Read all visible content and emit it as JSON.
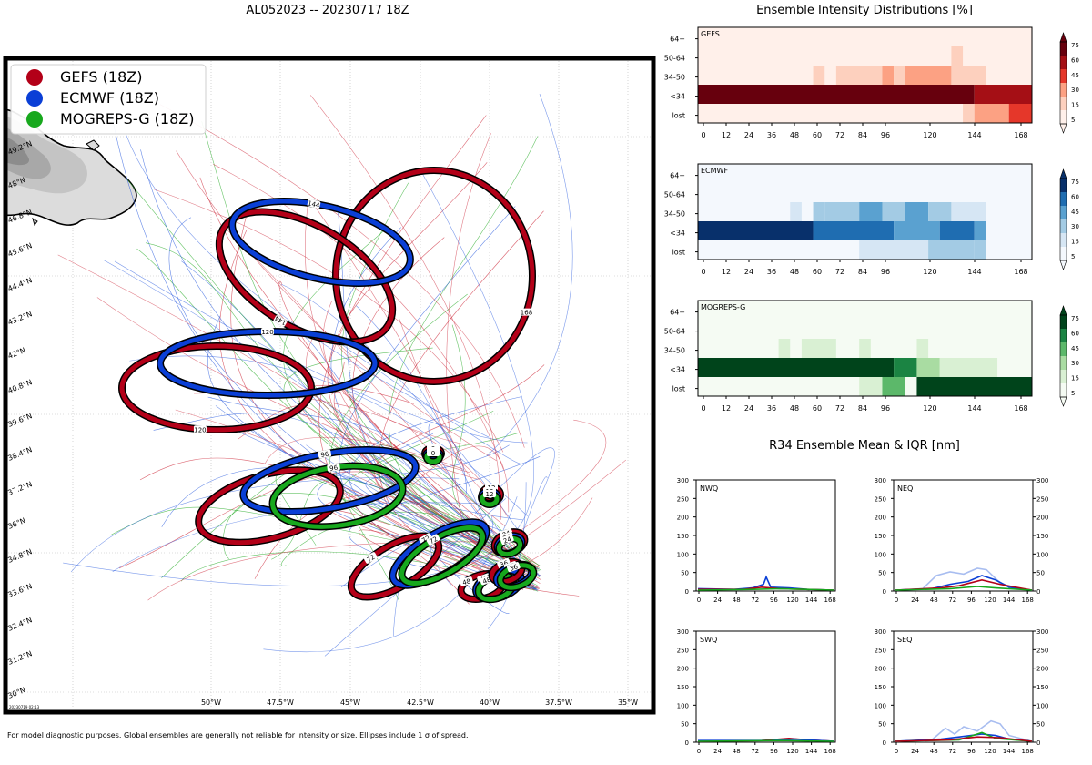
{
  "map": {
    "title": "AL052023 -- 20230717 18Z",
    "footer": "For model diagnostic purposes. Global ensembles are generally not reliable for intensity or size. Ellipses include 1 σ of spread.",
    "timestamp": "20230719 02:13",
    "lon_labels": [
      "50°W",
      "47.5°W",
      "45°W",
      "42.5°W",
      "40°W",
      "37.5°W",
      "35°W"
    ],
    "lat_labels": [
      "49.2°N",
      "48°N",
      "46.8°N",
      "45.6°N",
      "44.4°N",
      "43.2°N",
      "42°N",
      "40.8°N",
      "39.6°N",
      "38.4°N",
      "37.2°N",
      "36°N",
      "34.8°N",
      "33.6°N",
      "32.4°N",
      "31.2°N",
      "30°N"
    ],
    "legend": [
      {
        "label": "GEFS (18Z)",
        "color": "#b30018"
      },
      {
        "label": "ECMWF (18Z)",
        "color": "#0a3fd6"
      },
      {
        "label": "MOGREPS-G (18Z)",
        "color": "#17a81d"
      }
    ],
    "ellipse_hours": {
      "gefs": [
        "0",
        "12",
        "24",
        "36",
        "48",
        "72",
        "96",
        "96",
        "120",
        "120",
        "144",
        "144",
        "168",
        "168"
      ],
      "ecmwf": [
        "0",
        "12",
        "24",
        "36",
        "48",
        "72",
        "96",
        "96",
        "120",
        "120",
        "120",
        "144",
        "144"
      ],
      "mogreps": [
        "0",
        "12",
        "24",
        "36",
        "48",
        "72",
        "96",
        "96"
      ]
    }
  },
  "intensity": {
    "title": "Ensemble Intensity Distributions [%]",
    "y_categories": [
      "64+",
      "50-64",
      "34-50",
      "<34",
      "lost"
    ],
    "x_ticks": [
      "0",
      "12",
      "24",
      "36",
      "48",
      "60",
      "72",
      "84",
      "96",
      "120",
      "144",
      "168"
    ],
    "colorbar_ticks": [
      "75",
      "60",
      "45",
      "30",
      "15",
      "5"
    ],
    "panels": [
      {
        "name": "GEFS",
        "colors": [
          "#fff0ea",
          "#fdd0be",
          "#fca183",
          "#e5372a",
          "#a50f15",
          "#67000d"
        ]
      },
      {
        "name": "ECMWF",
        "colors": [
          "#f4f8fd",
          "#d6e6f4",
          "#a3cbe4",
          "#5aa1d0",
          "#1f6db1",
          "#08306b"
        ]
      },
      {
        "name": "MOGREPS-G",
        "colors": [
          "#f5fbf3",
          "#d9f0d3",
          "#a9dca2",
          "#5cb86a",
          "#1b8443",
          "#00441b"
        ]
      }
    ]
  },
  "r34": {
    "title": "R34 Ensemble Mean & IQR [nm]",
    "y_ticks": [
      "300",
      "250",
      "200",
      "150",
      "100",
      "50",
      "0"
    ],
    "x_ticks": [
      "0",
      "24",
      "48",
      "72",
      "96",
      "120",
      "144",
      "168"
    ],
    "panels": [
      {
        "name": "NWQ"
      },
      {
        "name": "NEQ"
      },
      {
        "name": "SWQ"
      },
      {
        "name": "SEQ"
      }
    ]
  }
}
